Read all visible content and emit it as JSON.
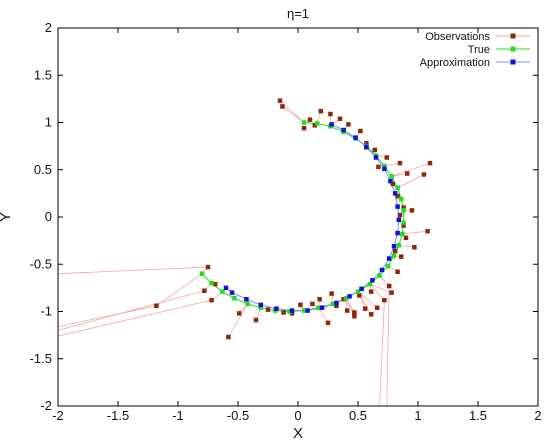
{
  "chart_data": {
    "type": "scatter",
    "title": "η=1",
    "xlabel": "X",
    "ylabel": "Y",
    "xlim": [
      -2,
      2
    ],
    "ylim": [
      -2,
      2
    ],
    "xticks": [
      -2,
      -1.5,
      -1,
      -0.5,
      0,
      0.5,
      1,
      1.5,
      2
    ],
    "yticks": [
      -2,
      -1.5,
      -1,
      -0.5,
      0,
      0.5,
      1,
      1.5,
      2
    ],
    "xtick_labels": [
      "-2",
      "-1.5",
      "-1",
      "-0.5",
      "0",
      "0.5",
      "1",
      "1.5",
      "2"
    ],
    "ytick_labels": [
      "-2",
      "-1.5",
      "-1",
      "-0.5",
      "0",
      "0.5",
      "1",
      "1.5",
      "2"
    ],
    "grid": false,
    "legend_position": "top-right",
    "series": [
      {
        "name": "Observations",
        "color": "#8b2a0a",
        "line_color": "#f4a6a6",
        "marker": "square",
        "points": [
          [
            -1.18,
            -0.94
          ],
          [
            -0.75,
            -0.53
          ],
          [
            -0.78,
            -0.78
          ],
          [
            -0.72,
            -0.88
          ],
          [
            -0.69,
            -0.71
          ],
          [
            -0.58,
            -1.27
          ],
          [
            -0.35,
            -1.09
          ],
          [
            -0.12,
            -1.01
          ],
          [
            -0.05,
            -1.02
          ],
          [
            0.02,
            -0.93
          ],
          [
            0.12,
            -0.92
          ],
          [
            0.18,
            -0.87
          ],
          [
            0.25,
            -1.12
          ],
          [
            0.32,
            -0.94
          ],
          [
            0.41,
            -0.99
          ],
          [
            0.47,
            -1.01
          ],
          [
            0.51,
            -0.83
          ],
          [
            0.56,
            -0.97
          ],
          [
            0.61,
            -1.03
          ],
          [
            0.66,
            -0.96
          ],
          [
            0.72,
            -0.88
          ],
          [
            0.76,
            -0.73
          ],
          [
            0.83,
            -0.58
          ],
          [
            0.86,
            -0.42
          ],
          [
            0.81,
            -0.36
          ],
          [
            0.9,
            -0.22
          ],
          [
            0.88,
            -0.09
          ],
          [
            0.85,
            0.02
          ],
          [
            0.95,
            0.07
          ],
          [
            0.83,
            0.22
          ],
          [
            0.79,
            0.35
          ],
          [
            0.85,
            0.57
          ],
          [
            0.91,
            0.46
          ],
          [
            0.74,
            0.63
          ],
          [
            0.64,
            0.71
          ],
          [
            0.57,
            0.78
          ],
          [
            0.52,
            0.91
          ],
          [
            0.42,
            0.98
          ],
          [
            0.35,
            1.04
          ],
          [
            0.27,
            1.09
          ],
          [
            0.19,
            1.12
          ],
          [
            0.1,
            1.03
          ],
          [
            -0.15,
            1.23
          ],
          [
            -0.13,
            1.17
          ],
          [
            0.05,
            0.94
          ],
          [
            0.14,
            0.97
          ],
          [
            0.57,
            0.74
          ],
          [
            0.67,
            0.53
          ],
          [
            0.88,
            0.1
          ],
          [
            0.97,
            -0.32
          ],
          [
            1.1,
            0.57
          ],
          [
            1.05,
            0.45
          ],
          [
            1.08,
            -0.15
          ],
          [
            0.78,
            -0.8
          ],
          [
            0.61,
            -0.79
          ],
          [
            0.47,
            -1.05
          ],
          [
            0.38,
            -0.87
          ],
          [
            -0.49,
            -1.02
          ],
          [
            -0.25,
            -0.98
          ],
          [
            0.28,
            -0.81
          ]
        ]
      },
      {
        "name": "True",
        "color": "#22dd22",
        "line_color": "#22dd22",
        "marker": "square",
        "points": [
          [
            0.05,
            1.0
          ],
          [
            0.16,
            0.99
          ],
          [
            0.27,
            0.96
          ],
          [
            0.38,
            0.9
          ],
          [
            0.48,
            0.83
          ],
          [
            0.57,
            0.75
          ],
          [
            0.65,
            0.65
          ],
          [
            0.72,
            0.54
          ],
          [
            0.78,
            0.43
          ],
          [
            0.83,
            0.31
          ],
          [
            0.86,
            0.19
          ],
          [
            0.88,
            0.07
          ],
          [
            0.88,
            -0.06
          ],
          [
            0.87,
            -0.18
          ],
          [
            0.84,
            -0.3
          ],
          [
            0.8,
            -0.41
          ],
          [
            0.75,
            -0.52
          ],
          [
            0.68,
            -0.62
          ],
          [
            0.6,
            -0.71
          ],
          [
            0.5,
            -0.79
          ],
          [
            0.4,
            -0.86
          ],
          [
            0.29,
            -0.92
          ],
          [
            0.17,
            -0.96
          ],
          [
            0.05,
            -0.99
          ],
          [
            -0.07,
            -1.0
          ],
          [
            -0.19,
            -0.99
          ],
          [
            -0.31,
            -0.96
          ],
          [
            -0.42,
            -0.92
          ],
          [
            -0.53,
            -0.86
          ],
          [
            -0.63,
            -0.79
          ],
          [
            -0.72,
            -0.7
          ],
          [
            -0.8,
            -0.6
          ]
        ]
      },
      {
        "name": "Approximation",
        "color": "#1010dd",
        "line_color": "#8888ff",
        "marker": "square",
        "points": [
          [
            0.28,
            0.98
          ],
          [
            0.38,
            0.92
          ],
          [
            0.48,
            0.84
          ],
          [
            0.57,
            0.74
          ],
          [
            0.65,
            0.63
          ],
          [
            0.72,
            0.51
          ],
          [
            0.77,
            0.38
          ],
          [
            0.81,
            0.25
          ],
          [
            0.83,
            0.11
          ],
          [
            0.84,
            -0.03
          ],
          [
            0.83,
            -0.17
          ],
          [
            0.8,
            -0.31
          ],
          [
            0.76,
            -0.44
          ],
          [
            0.7,
            -0.56
          ],
          [
            0.62,
            -0.67
          ],
          [
            0.53,
            -0.76
          ],
          [
            0.43,
            -0.84
          ],
          [
            0.32,
            -0.91
          ],
          [
            0.2,
            -0.96
          ],
          [
            0.08,
            -0.99
          ],
          [
            -0.05,
            -0.99
          ],
          [
            -0.18,
            -0.97
          ],
          [
            -0.31,
            -0.93
          ],
          [
            -0.43,
            -0.87
          ],
          [
            -0.55,
            -0.8
          ],
          [
            -0.6,
            -0.75
          ]
        ]
      }
    ],
    "stray_lines": [
      [
        [
          -1.18,
          -0.94
        ],
        [
          -2.0,
          -1.16
        ]
      ],
      [
        [
          -0.78,
          -0.78
        ],
        [
          -2.0,
          -1.2
        ]
      ],
      [
        [
          -0.72,
          -0.88
        ],
        [
          -2.0,
          -1.26
        ]
      ],
      [
        [
          -0.75,
          -0.53
        ],
        [
          -2.0,
          -0.6
        ]
      ],
      [
        [
          0.72,
          -0.88
        ],
        [
          0.68,
          -2.0
        ]
      ],
      [
        [
          0.76,
          -0.73
        ],
        [
          0.74,
          -2.0
        ]
      ]
    ]
  }
}
